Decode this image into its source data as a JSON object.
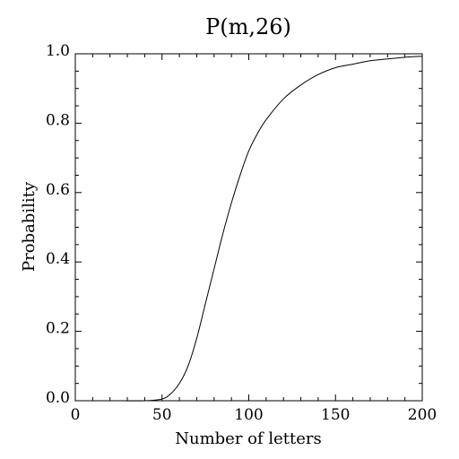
{
  "chart_data": {
    "type": "line",
    "title": "P(m,26)",
    "xlabel": "Number of letters",
    "ylabel": "Probability",
    "xlim": [
      0,
      200
    ],
    "ylim": [
      0,
      1.0
    ],
    "xticks": [
      "0",
      "50",
      "100",
      "150",
      "200"
    ],
    "yticks": [
      "0.0",
      "0.2",
      "0.4",
      "0.6",
      "0.8",
      "1.0"
    ],
    "grid": false,
    "series": [
      {
        "color": "#000000",
        "x": [
          0,
          26,
          40,
          50,
          55,
          60,
          65,
          70,
          75,
          80,
          85,
          90,
          95,
          100,
          105,
          110,
          120,
          130,
          140,
          150,
          160,
          170,
          180,
          190,
          200
        ],
        "y": [
          0,
          0,
          0.0,
          0.005,
          0.02,
          0.05,
          0.1,
          0.18,
          0.28,
          0.38,
          0.48,
          0.57,
          0.65,
          0.72,
          0.77,
          0.81,
          0.87,
          0.91,
          0.94,
          0.96,
          0.97,
          0.98,
          0.985,
          0.99,
          0.993
        ]
      }
    ]
  }
}
